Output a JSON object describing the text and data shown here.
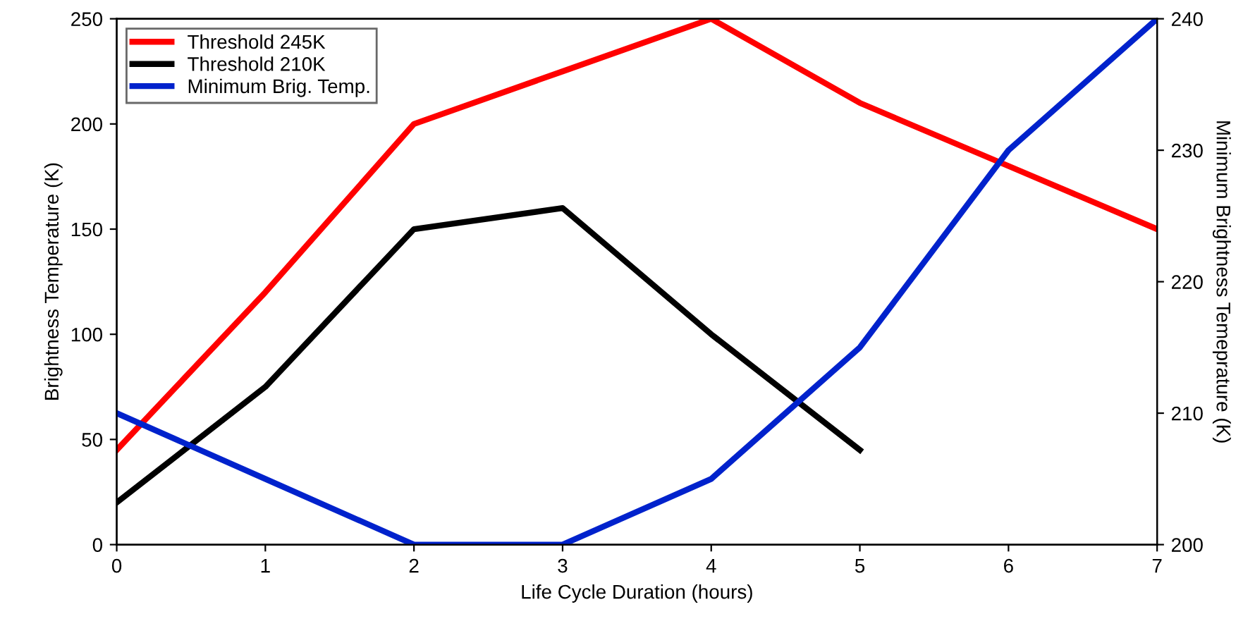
{
  "chart_data": {
    "type": "line",
    "xlabel": "Life Cycle Duration (hours)",
    "ylabel": "Brightness Temperature (K)",
    "y2label": "Minimum Brightness Temeprature (K)",
    "x": [
      0,
      1,
      2,
      3,
      4,
      5,
      6,
      7
    ],
    "xlim": [
      0,
      7
    ],
    "xticks": [
      0,
      1,
      2,
      3,
      4,
      5,
      6,
      7
    ],
    "ylim": [
      0,
      250
    ],
    "yticks": [
      0,
      50,
      100,
      150,
      200,
      250
    ],
    "y2lim": [
      200,
      240
    ],
    "y2ticks": [
      200,
      210,
      220,
      230,
      240
    ],
    "series": [
      {
        "name": "Threshold 245K",
        "color": "#ff0000",
        "values": [
          45,
          120,
          200,
          225,
          250,
          210,
          180,
          150
        ]
      },
      {
        "name": "Threshold 210K",
        "color": "#000000",
        "values": [
          20,
          75,
          150,
          160,
          100,
          45,
          null,
          null
        ]
      },
      {
        "name": "Minimum Brig. Temp.",
        "color": "#0022cc",
        "axis": "y2",
        "values": [
          210,
          205,
          200,
          200,
          205,
          215,
          230,
          240
        ]
      }
    ],
    "legend": "top left",
    "grid": false,
    "marker": "none",
    "line_style": "solid"
  }
}
